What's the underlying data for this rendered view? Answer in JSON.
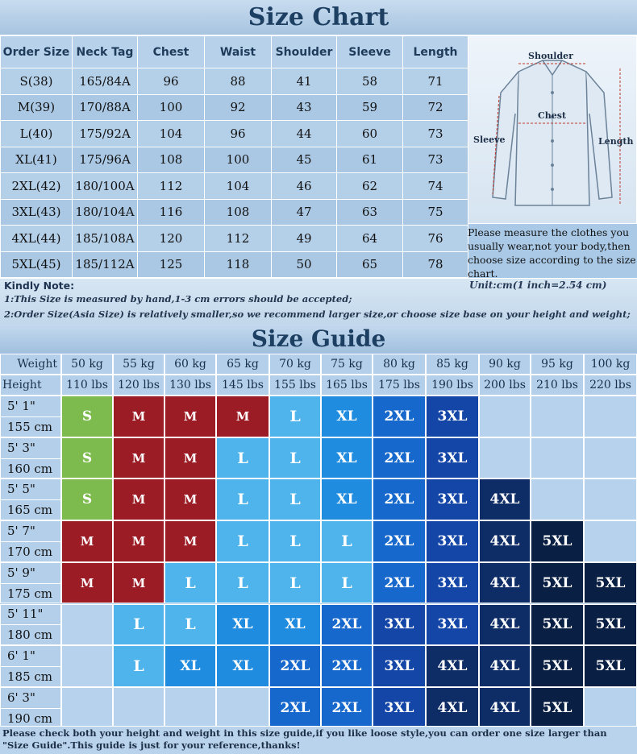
{
  "chart_title": "Size Chart",
  "chart_headers": [
    "Order Size",
    "Neck Tag",
    "Chest",
    "Waist",
    "Shoulder",
    "Sleeve",
    "Length"
  ],
  "chart_rows": [
    [
      "S(38)",
      "165/84A",
      "96",
      "88",
      "41",
      "58",
      "71"
    ],
    [
      "M(39)",
      "170/88A",
      "100",
      "92",
      "43",
      "59",
      "72"
    ],
    [
      "L(40)",
      "175/92A",
      "104",
      "96",
      "44",
      "60",
      "73"
    ],
    [
      "XL(41)",
      "175/96A",
      "108",
      "100",
      "45",
      "61",
      "73"
    ],
    [
      "2XL(42)",
      "180/100A",
      "112",
      "104",
      "46",
      "62",
      "74"
    ],
    [
      "3XL(43)",
      "180/104A",
      "116",
      "108",
      "47",
      "63",
      "75"
    ],
    [
      "4XL(44)",
      "185/108A",
      "120",
      "112",
      "49",
      "64",
      "76"
    ],
    [
      "5XL(45)",
      "185/112A",
      "125",
      "118",
      "50",
      "65",
      "78"
    ]
  ],
  "shirt_labels": {
    "shoulder": "Shoulder",
    "chest": "Chest",
    "sleeve": "Sleeve",
    "length": "Length"
  },
  "measure_note": "Please measure the clothes you usually wear,not your body,then choose size according to the size chart.",
  "unit_note": "Unit:cm(1 inch=2.54 cm)",
  "kindly_note": {
    "title": "Kindly Note:",
    "line1": "1:This Size is measured by hand,1-3 cm errors should be accepted;",
    "line2": "2:Order Size(Asia Size) is relatively smaller,so we recommend larger size,or choose size base on your height and weight;"
  },
  "guide_title": "Size Guide",
  "guide_labels": {
    "weight": "Weight",
    "height": "Height"
  },
  "weights_kg": [
    "50 kg",
    "55 kg",
    "60 kg",
    "65 kg",
    "70 kg",
    "75 kg",
    "80 kg",
    "85 kg",
    "90 kg",
    "95 kg",
    "100 kg"
  ],
  "weights_lbs": [
    "110 lbs",
    "120 lbs",
    "130 lbs",
    "145 lbs",
    "155 lbs",
    "165 lbs",
    "175 lbs",
    "190 lbs",
    "200 lbs",
    "210 lbs",
    "220 lbs"
  ],
  "heights": [
    {
      "ft": "5' 1\"",
      "cm": "155 cm"
    },
    {
      "ft": "5' 3\"",
      "cm": "160 cm"
    },
    {
      "ft": "5' 5\"",
      "cm": "165 cm"
    },
    {
      "ft": "5' 7\"",
      "cm": "170 cm"
    },
    {
      "ft": "5' 9\"",
      "cm": "175 cm"
    },
    {
      "ft": "5' 11\"",
      "cm": "180 cm"
    },
    {
      "ft": "6' 1\"",
      "cm": "185 cm"
    },
    {
      "ft": "6' 3\"",
      "cm": "190 cm"
    }
  ],
  "guide_grid": [
    [
      "S",
      "M",
      "M",
      "M",
      "L",
      "XL",
      "2XL",
      "3XL",
      "",
      "",
      ""
    ],
    [
      "S",
      "M",
      "M",
      "L",
      "L",
      "XL",
      "2XL",
      "3XL",
      "",
      "",
      ""
    ],
    [
      "S",
      "M",
      "M",
      "L",
      "L",
      "XL",
      "2XL",
      "3XL",
      "4XL",
      "",
      ""
    ],
    [
      "M",
      "M",
      "M",
      "L",
      "L",
      "L",
      "2XL",
      "3XL",
      "4XL",
      "5XL",
      ""
    ],
    [
      "M",
      "M",
      "L",
      "L",
      "L",
      "L",
      "2XL",
      "3XL",
      "4XL",
      "5XL",
      "5XL"
    ],
    [
      "",
      "L",
      "L",
      "XL",
      "XL",
      "2XL",
      "3XL",
      "3XL",
      "4XL",
      "5XL",
      "5XL"
    ],
    [
      "",
      "L",
      "XL",
      "XL",
      "2XL",
      "2XL",
      "3XL",
      "4XL",
      "4XL",
      "5XL",
      "5XL"
    ],
    [
      "",
      "",
      "",
      "",
      "2XL",
      "2XL",
      "3XL",
      "4XL",
      "4XL",
      "5XL",
      ""
    ]
  ],
  "size_colors": {
    "S": "#7dbb4e",
    "M": "#9c1c25",
    "L": "#4fb4ec",
    "XL": "#1f8ce0",
    "2XL": "#1668cc",
    "3XL": "#1446a8",
    "4XL": "#0e2c66",
    "5XL": "#0a1f44"
  },
  "footer": "Please check both your height and weight in this size guide,if you like loose style,you can order one size larger than \"Size Guide\".This guide is just for your reference,thanks!"
}
